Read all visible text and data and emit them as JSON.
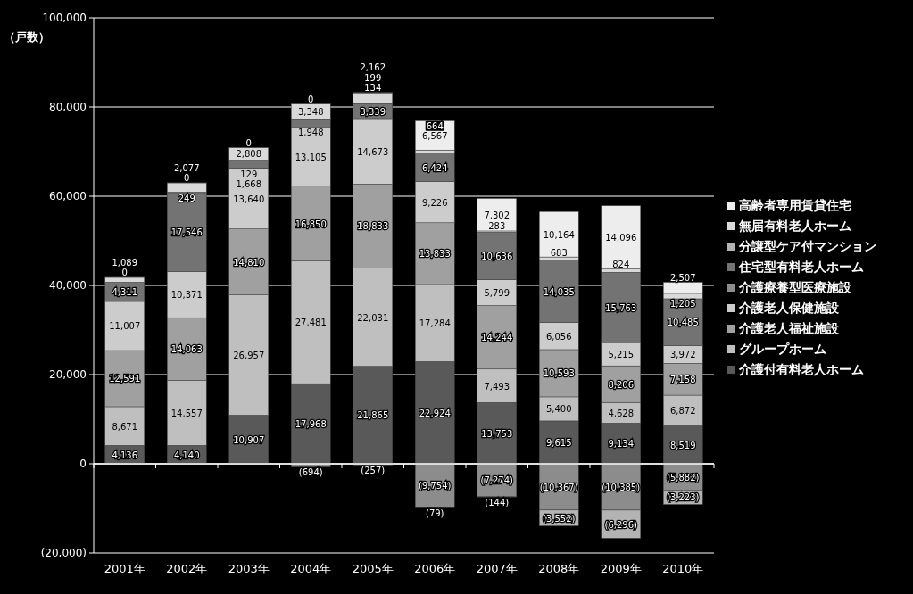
{
  "chart_data": {
    "type": "bar",
    "stacked": true,
    "ylabel": "（戸数）",
    "categories": [
      "2001年",
      "2002年",
      "2003年",
      "2004年",
      "2005年",
      "2006年",
      "2007年",
      "2008年",
      "2009年",
      "2010年"
    ],
    "ylim": [
      -20000,
      100000
    ],
    "yticks": [
      {
        "value": -20000,
        "label": "(20,000)"
      },
      {
        "value": 0,
        "label": "0"
      },
      {
        "value": 20000,
        "label": "20,000"
      },
      {
        "value": 40000,
        "label": "40,000"
      },
      {
        "value": 60000,
        "label": "60,000"
      },
      {
        "value": 80000,
        "label": "80,000"
      },
      {
        "value": 100000,
        "label": "100,000"
      }
    ],
    "grid": "y",
    "legend": "right",
    "series": [
      {
        "name": "介護付有料老人ホーム",
        "color": "#595959",
        "values": [
          4136,
          4140,
          10907,
          17968,
          21865,
          22924,
          13753,
          9615,
          9134,
          8519
        ],
        "value_labels": [
          "4,136",
          "4,140",
          "10,907",
          "17,968",
          "21,865",
          "22,924",
          "13,753",
          "9,615",
          "9,134",
          "8,519"
        ]
      },
      {
        "name": "グループホーム",
        "color": "#bfbfbf",
        "values": [
          8671,
          14557,
          26957,
          27481,
          22031,
          17284,
          7493,
          5400,
          4628,
          6872
        ],
        "value_labels": [
          "8,671",
          "14,557",
          "26,957",
          "27,481",
          "22,031",
          "17,284",
          "7,493",
          "5,400",
          "4,628",
          "6,872"
        ]
      },
      {
        "name": "介護老人福祉施設",
        "color": "#a0a0a0",
        "values": [
          12591,
          14063,
          14810,
          16850,
          18833,
          13833,
          14244,
          10593,
          8206,
          7158
        ],
        "value_labels": [
          "12,591",
          "14,063",
          "14,810",
          "16,850",
          "18,833",
          "13,833",
          "14,244",
          "10,593",
          "8,206",
          "7,158"
        ]
      },
      {
        "name": "介護老人保健施設",
        "color": "#cccccc",
        "values": [
          11007,
          10371,
          13640,
          13105,
          14673,
          9226,
          5799,
          6056,
          5215,
          3972
        ],
        "value_labels": [
          "11,007",
          "10,371",
          "13,640",
          "13,105",
          "14,673",
          "9,226",
          "5,799",
          "6,056",
          "5,215",
          "3,972"
        ]
      },
      {
        "name": "介護療養型医療施設",
        "color": "#8c8c8c",
        "values": [
          null,
          null,
          null,
          -694,
          -257,
          -9754,
          -7274,
          -10367,
          -10385,
          -5882
        ],
        "value_labels": [
          null,
          null,
          null,
          "(694)",
          "(257)",
          "(9,754)",
          "(7,274)",
          "(10,367)",
          "(10,385)",
          "(5,882)"
        ]
      },
      {
        "name": "住宅型有料老人ホーム",
        "color": "#737373",
        "values": [
          4311,
          17546,
          1668,
          1948,
          3339,
          6424,
          10636,
          14035,
          15763,
          10485
        ],
        "value_labels": [
          "4,311",
          "17,546",
          "1,668",
          "1,948",
          "3,339",
          "6,424",
          "10,636",
          "14,035",
          "15,763",
          "10,485"
        ]
      },
      {
        "name": "分譲型ケア付マンション",
        "color": "#b3b3b3",
        "values": [
          null,
          249,
          129,
          null,
          199,
          -79,
          -144,
          -3552,
          -6296,
          -3223
        ],
        "value_labels": [
          null,
          "249",
          "129",
          null,
          "199",
          "(79)",
          "(144)",
          "(3,552)",
          "(6,296)",
          "(3,223)"
        ]
      },
      {
        "name": "無届有料老人ホーム",
        "color": "#d9d9d9",
        "values": [
          1089,
          2077,
          2808,
          3348,
          2162,
          664,
          283,
          683,
          824,
          1205
        ],
        "value_labels": [
          "1,089",
          "2,077",
          "2,808",
          "3,348",
          "2,162",
          "664",
          "283",
          "683",
          "824",
          "1,205"
        ]
      },
      {
        "name": "高齢者専用賃貸住宅",
        "color": "#ededed",
        "values": [
          0,
          0,
          0,
          0,
          134,
          6567,
          7302,
          10164,
          14096,
          2507
        ],
        "value_labels": [
          "0",
          "0",
          "0",
          "0",
          "134",
          "6,567",
          "7,302",
          "10,164",
          "14,096",
          "2,507"
        ]
      }
    ]
  }
}
